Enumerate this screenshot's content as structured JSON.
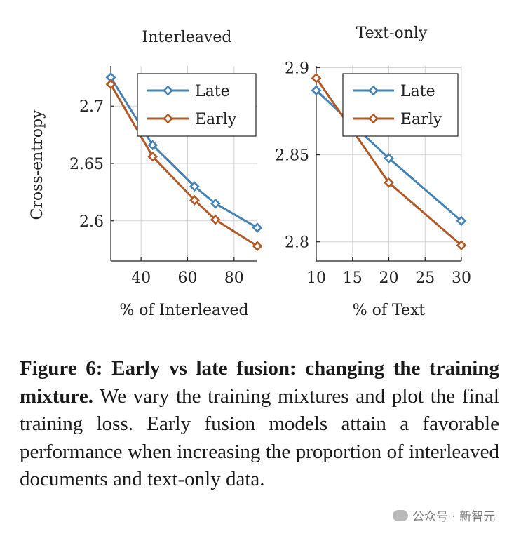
{
  "chart_data": [
    {
      "type": "line",
      "title": "Interleaved",
      "xlabel": "% of Interleaved",
      "ylabel": "Cross-entropy",
      "xlim": [
        27,
        90
      ],
      "ylim": [
        2.565,
        2.735
      ],
      "xticks": [
        40,
        60,
        80
      ],
      "yticks": [
        2.6,
        2.65,
        2.7
      ],
      "ytick_labels": [
        "2.6",
        "2.65",
        "2.7"
      ],
      "grid": true,
      "legend_position": "top-right",
      "series": [
        {
          "name": "Late",
          "color": "#4682b4",
          "x": [
            27,
            45,
            63,
            72,
            90
          ],
          "y": [
            2.725,
            2.666,
            2.63,
            2.615,
            2.594
          ]
        },
        {
          "name": "Early",
          "color": "#b05a28",
          "x": [
            27,
            45,
            63,
            72,
            90
          ],
          "y": [
            2.719,
            2.656,
            2.618,
            2.601,
            2.578
          ]
        }
      ]
    },
    {
      "type": "line",
      "title": "Text-only",
      "xlabel": "% of Text",
      "ylabel": "",
      "xlim": [
        10,
        30
      ],
      "ylim": [
        2.789,
        2.901
      ],
      "xticks": [
        10,
        15,
        20,
        25,
        30
      ],
      "yticks": [
        2.8,
        2.85,
        2.9
      ],
      "ytick_labels": [
        "2.8",
        "2.85",
        "2.9"
      ],
      "grid": true,
      "legend_position": "top-right",
      "series": [
        {
          "name": "Late",
          "color": "#4682b4",
          "x": [
            10,
            20,
            30
          ],
          "y": [
            2.887,
            2.848,
            2.812
          ]
        },
        {
          "name": "Early",
          "color": "#b05a28",
          "x": [
            10,
            20,
            30
          ],
          "y": [
            2.894,
            2.834,
            2.798
          ]
        }
      ]
    }
  ],
  "caption": {
    "label": "Figure 6: Early vs late fusion: changing the training mixture.",
    "text": " We vary the training mixtures and plot the final training loss. Early fusion models attain a favorable performance when increasing the proportion of interleaved documents and text-only data."
  },
  "watermark": "公众号 · 新智元"
}
